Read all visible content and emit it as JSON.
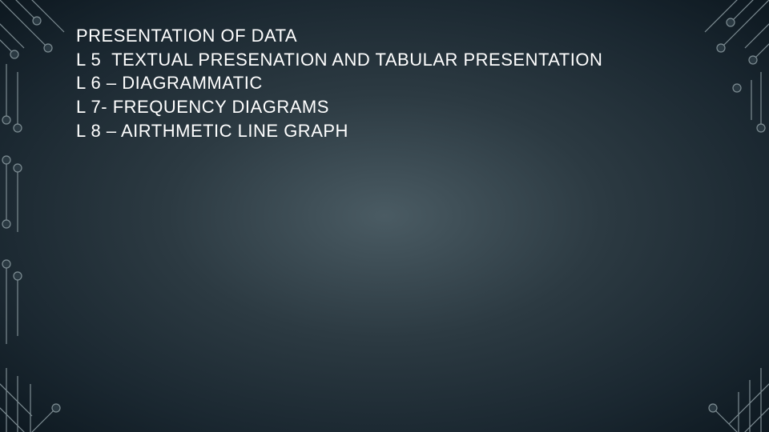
{
  "slide": {
    "lines": [
      "PRESENTATION OF DATA",
      "L 5  TEXTUAL PRESENATION AND TABULAR PRESENTATION",
      "L 6 – DIAGRAMMATIC",
      "L 7- FREQUENCY DIAGRAMS",
      "L 8 – AIRTHMETIC LINE GRAPH"
    ]
  },
  "decor": {
    "stroke_color": "#7e8d93",
    "stroke_width": 1.2,
    "node_fill": "#2a3942",
    "node_radius": 5
  }
}
